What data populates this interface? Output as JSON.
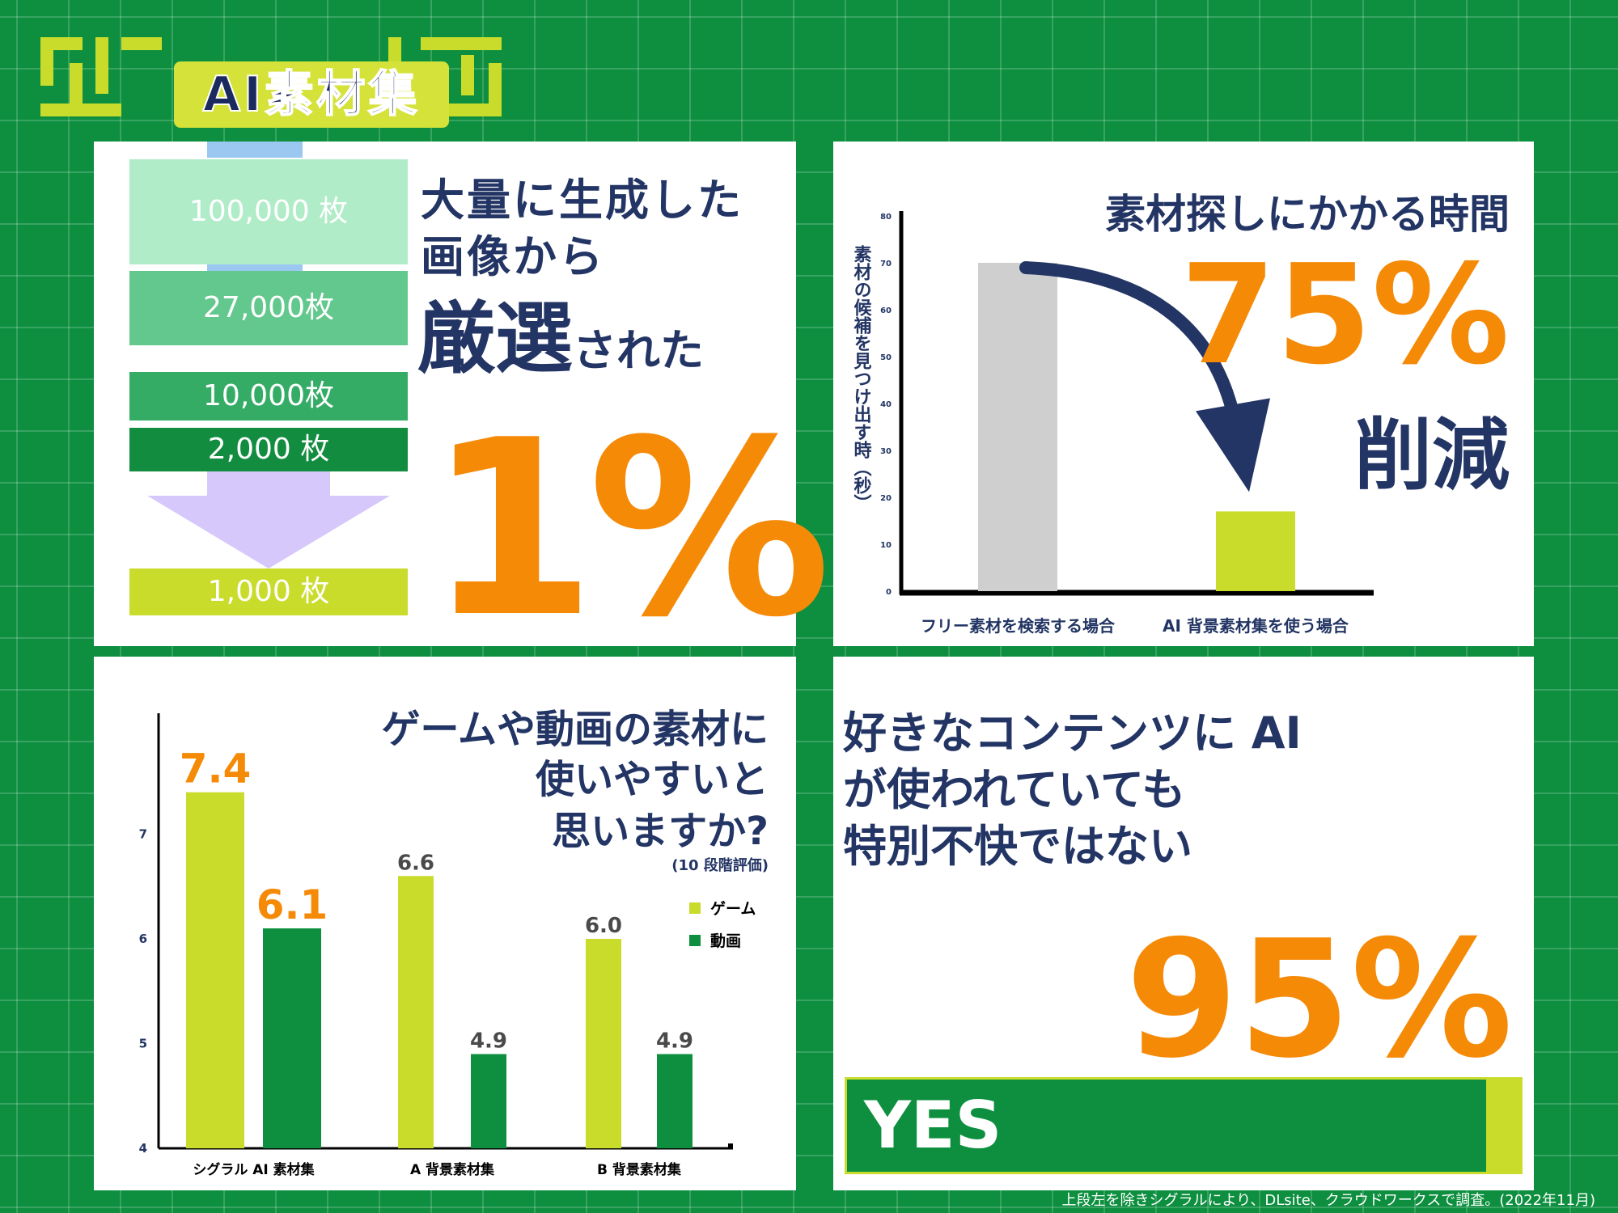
{
  "logo": {
    "title": "AI素材集"
  },
  "panel1": {
    "counts": [
      "100,000 枚",
      "27,000枚",
      "10,000枚",
      "2,000 枚",
      "1,000 枚"
    ],
    "line1": "大量に生成した",
    "line2": "画像から",
    "emph": "厳選",
    "suffix": "された",
    "big": "1%"
  },
  "panel2": {
    "title": "素材探しにかかる時間",
    "big": "75%",
    "sub": "削減"
  },
  "panel3": {
    "title_line1": "ゲームや動画の素材に",
    "title_line2": "使いやすいと",
    "title_line3": "思いますか?",
    "note": "(10 段階評価)"
  },
  "panel4": {
    "line1": "好きなコンテンツに AI",
    "line2": "が使われていても",
    "line3": "特別不快ではない",
    "big": "95%",
    "bar_label": "YES",
    "bar_value": 95
  },
  "footer": "上段左を除きシグラルにより、DLsite、クラウドワークスで調査。(2022年11月)",
  "colors": {
    "bg": "#0d8f3f",
    "navy": "#233564",
    "orange": "#f58a07",
    "lime": "#c9dc2b",
    "green": "#0d8f3f",
    "gray": "#cfcfcf"
  },
  "chart_data": [
    {
      "type": "bar",
      "categories": [
        "フリー素材を検索する場合",
        "AI 背景素材集を使う場合"
      ],
      "values": [
        70,
        17
      ],
      "ylabel": "素材の候補を見つけ出す時（秒）",
      "ylim": [
        0,
        80
      ],
      "yticks": [
        0,
        10,
        20,
        30,
        40,
        50,
        60,
        70,
        80
      ]
    },
    {
      "type": "bar",
      "categories": [
        "シグラル AI 素材集",
        "A 背景素材集",
        "B 背景素材集"
      ],
      "series": [
        {
          "name": "ゲーム",
          "values": [
            7.4,
            6.6,
            6.0
          ],
          "color": "#c9dc2b"
        },
        {
          "name": "動画",
          "values": [
            6.1,
            4.9,
            4.9
          ],
          "color": "#0d8f3f"
        }
      ],
      "ylim": [
        4,
        8
      ],
      "yticks": [
        4,
        5,
        6,
        7
      ],
      "legend": "right"
    }
  ]
}
